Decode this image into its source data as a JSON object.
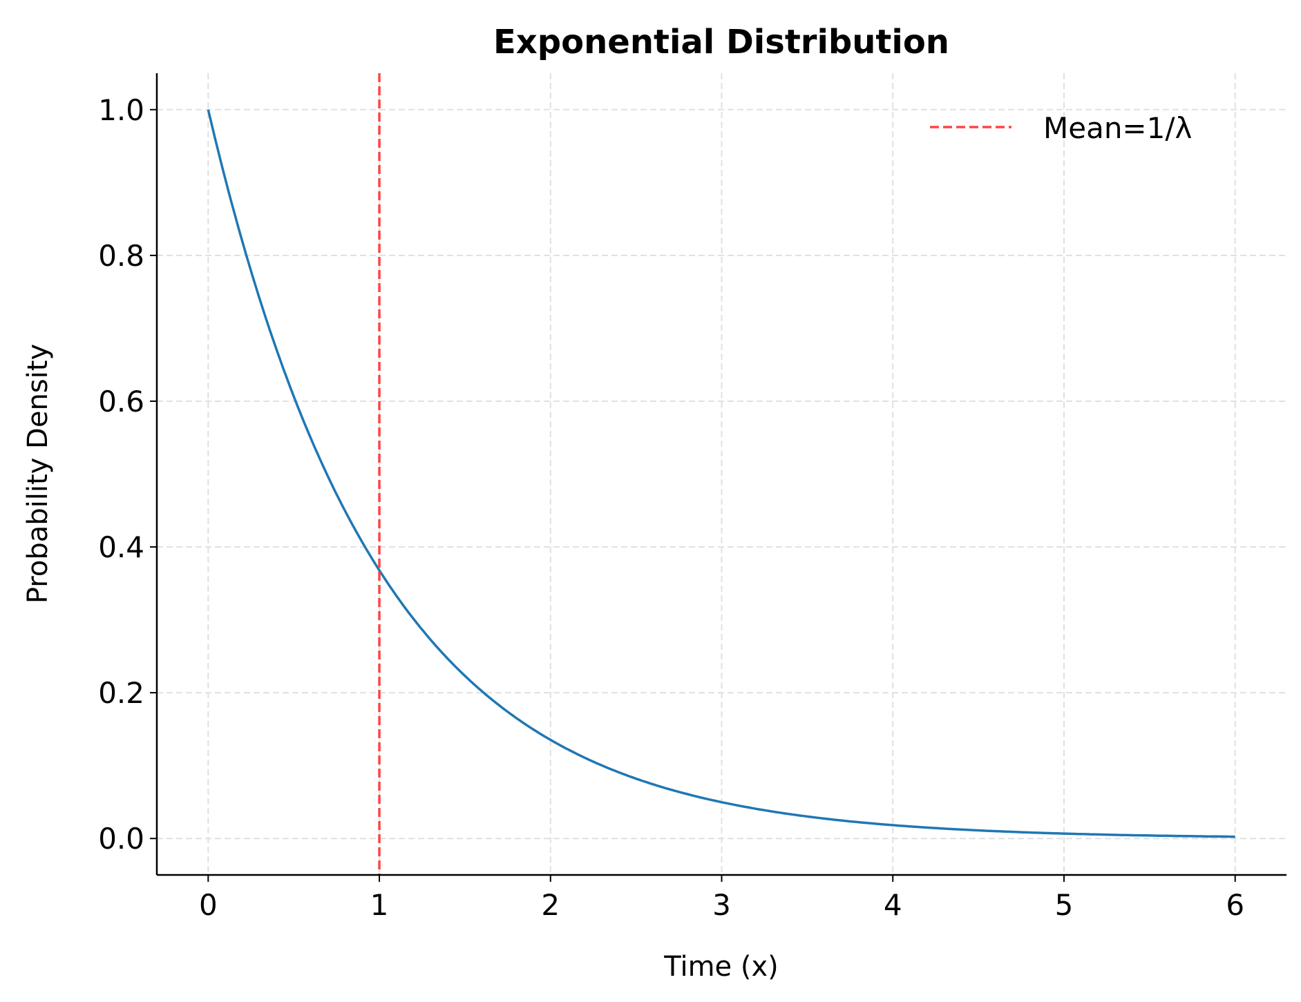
{
  "chart_data": {
    "type": "line",
    "title": "Exponential Distribution",
    "xlabel": "Time (x)",
    "ylabel": "Probability Density",
    "xlim": [
      -0.3,
      6.3
    ],
    "ylim": [
      -0.05,
      1.05
    ],
    "xticks": [
      0,
      1,
      2,
      3,
      4,
      5,
      6
    ],
    "xtick_labels": [
      "0",
      "1",
      "2",
      "3",
      "4",
      "5",
      "6"
    ],
    "yticks": [
      0.0,
      0.2,
      0.4,
      0.6,
      0.8,
      1.0
    ],
    "ytick_labels": [
      "0.0",
      "0.2",
      "0.4",
      "0.6",
      "0.8",
      "1.0"
    ],
    "grid": true,
    "legend_placement": "top-right",
    "series": [
      {
        "type": "line",
        "function": "exp(-x)",
        "lambda": 1,
        "x_range": [
          0,
          6
        ],
        "color": "#1f77b4",
        "x": [
          0,
          0.5,
          1,
          1.5,
          2,
          2.5,
          3,
          3.5,
          4,
          4.5,
          5,
          5.5,
          6
        ],
        "y": [
          1.0,
          0.607,
          0.368,
          0.223,
          0.135,
          0.082,
          0.05,
          0.03,
          0.018,
          0.011,
          0.007,
          0.004,
          0.002
        ]
      },
      {
        "type": "vline",
        "name": "Mean=1/λ",
        "x": 1,
        "color": "#ff4444",
        "style": "dashed"
      }
    ],
    "legend": [
      "Mean=1/λ"
    ]
  }
}
